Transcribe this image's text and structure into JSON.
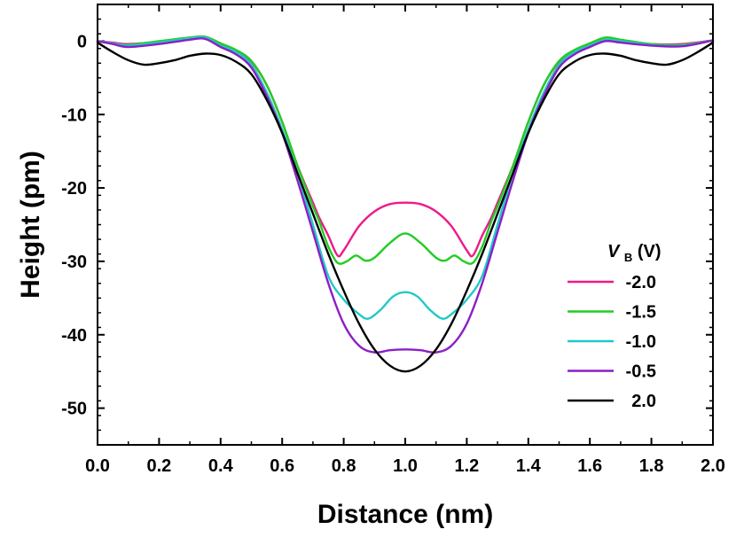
{
  "chart_data": {
    "type": "line",
    "title": "",
    "xlabel": "Distance (nm)",
    "ylabel": "Height (pm)",
    "xlim": [
      0.0,
      2.0
    ],
    "ylim": [
      -55,
      5
    ],
    "xticks": [
      0.0,
      0.2,
      0.4,
      0.6,
      0.8,
      1.0,
      1.2,
      1.4,
      1.6,
      1.8,
      2.0
    ],
    "xtick_labels": [
      "0.0",
      "0.2",
      "0.4",
      "0.6",
      "0.8",
      "1.0",
      "1.2",
      "1.4",
      "1.6",
      "1.8",
      "2.0"
    ],
    "yticks": [
      0,
      -10,
      -20,
      -30,
      -40,
      -50
    ],
    "ytick_labels": [
      "0",
      "-10",
      "-20",
      "-30",
      "-40",
      "-50"
    ],
    "grid": false,
    "legend": {
      "title_main": "V",
      "title_sub": "B",
      "title_unit": " (V)",
      "placement": "right"
    },
    "series": [
      {
        "name": "-2.0",
        "color": "#ee1a8a",
        "points": [
          [
            0.0,
            0.0
          ],
          [
            0.05,
            -0.2
          ],
          [
            0.1,
            -0.4
          ],
          [
            0.2,
            -0.1
          ],
          [
            0.3,
            0.4
          ],
          [
            0.35,
            0.5
          ],
          [
            0.4,
            -0.4
          ],
          [
            0.45,
            -1.3
          ],
          [
            0.5,
            -2.8
          ],
          [
            0.55,
            -6
          ],
          [
            0.6,
            -11
          ],
          [
            0.65,
            -17
          ],
          [
            0.7,
            -22
          ],
          [
            0.72,
            -24
          ],
          [
            0.75,
            -26.5
          ],
          [
            0.78,
            -29.2
          ],
          [
            0.8,
            -28.5
          ],
          [
            0.85,
            -25.2
          ],
          [
            0.9,
            -23.2
          ],
          [
            0.95,
            -22.2
          ],
          [
            1.0,
            -22.0
          ],
          [
            1.05,
            -22.2
          ],
          [
            1.1,
            -23.2
          ],
          [
            1.15,
            -25.2
          ],
          [
            1.2,
            -28.5
          ],
          [
            1.22,
            -29.2
          ],
          [
            1.25,
            -26.5
          ],
          [
            1.28,
            -24
          ],
          [
            1.3,
            -22
          ],
          [
            1.35,
            -17
          ],
          [
            1.4,
            -11
          ],
          [
            1.45,
            -6
          ],
          [
            1.5,
            -2.8
          ],
          [
            1.55,
            -1.3
          ],
          [
            1.6,
            -0.4
          ],
          [
            1.65,
            0.2
          ],
          [
            1.7,
            0.0
          ],
          [
            1.8,
            -0.4
          ],
          [
            1.9,
            -0.4
          ],
          [
            2.0,
            0.1
          ]
        ]
      },
      {
        "name": "-1.5",
        "color": "#22cc22",
        "points": [
          [
            0.0,
            0.0
          ],
          [
            0.05,
            -0.3
          ],
          [
            0.1,
            -0.5
          ],
          [
            0.2,
            0.0
          ],
          [
            0.3,
            0.5
          ],
          [
            0.35,
            0.6
          ],
          [
            0.4,
            -0.3
          ],
          [
            0.45,
            -1.2
          ],
          [
            0.5,
            -2.7
          ],
          [
            0.55,
            -6
          ],
          [
            0.6,
            -11
          ],
          [
            0.65,
            -17
          ],
          [
            0.7,
            -22.5
          ],
          [
            0.72,
            -24.5
          ],
          [
            0.75,
            -28
          ],
          [
            0.78,
            -30.2
          ],
          [
            0.81,
            -30.0
          ],
          [
            0.84,
            -29.2
          ],
          [
            0.87,
            -29.9
          ],
          [
            0.9,
            -29.5
          ],
          [
            0.95,
            -27.5
          ],
          [
            1.0,
            -26.2
          ],
          [
            1.05,
            -27.5
          ],
          [
            1.1,
            -29.5
          ],
          [
            1.13,
            -29.9
          ],
          [
            1.16,
            -29.2
          ],
          [
            1.19,
            -30.0
          ],
          [
            1.22,
            -30.2
          ],
          [
            1.25,
            -28
          ],
          [
            1.28,
            -24.5
          ],
          [
            1.3,
            -22.5
          ],
          [
            1.35,
            -17
          ],
          [
            1.4,
            -11
          ],
          [
            1.45,
            -6
          ],
          [
            1.5,
            -2.7
          ],
          [
            1.55,
            -1.2
          ],
          [
            1.6,
            -0.3
          ],
          [
            1.65,
            0.5
          ],
          [
            1.7,
            0.2
          ],
          [
            1.8,
            -0.4
          ],
          [
            1.9,
            -0.5
          ],
          [
            2.0,
            0.1
          ]
        ]
      },
      {
        "name": "-1.0",
        "color": "#22c8c8",
        "points": [
          [
            0.0,
            0.0
          ],
          [
            0.05,
            -0.3
          ],
          [
            0.1,
            -0.6
          ],
          [
            0.2,
            -0.2
          ],
          [
            0.3,
            0.4
          ],
          [
            0.35,
            0.5
          ],
          [
            0.4,
            -0.6
          ],
          [
            0.45,
            -1.5
          ],
          [
            0.5,
            -3.2
          ],
          [
            0.55,
            -7
          ],
          [
            0.6,
            -12
          ],
          [
            0.65,
            -18
          ],
          [
            0.7,
            -25
          ],
          [
            0.75,
            -32
          ],
          [
            0.8,
            -35.2
          ],
          [
            0.85,
            -37.2
          ],
          [
            0.88,
            -37.8
          ],
          [
            0.92,
            -36.6
          ],
          [
            0.96,
            -34.8
          ],
          [
            1.0,
            -34.2
          ],
          [
            1.04,
            -34.8
          ],
          [
            1.08,
            -36.6
          ],
          [
            1.12,
            -37.8
          ],
          [
            1.15,
            -37.2
          ],
          [
            1.2,
            -35.2
          ],
          [
            1.25,
            -32
          ],
          [
            1.3,
            -25
          ],
          [
            1.35,
            -18
          ],
          [
            1.4,
            -12
          ],
          [
            1.45,
            -7
          ],
          [
            1.5,
            -3.2
          ],
          [
            1.55,
            -1.5
          ],
          [
            1.6,
            -0.6
          ],
          [
            1.65,
            0.2
          ],
          [
            1.7,
            0.0
          ],
          [
            1.8,
            -0.5
          ],
          [
            1.9,
            -0.6
          ],
          [
            2.0,
            0.1
          ]
        ]
      },
      {
        "name": "-0.5",
        "color": "#8b1fc4",
        "points": [
          [
            0.0,
            0.0
          ],
          [
            0.05,
            -0.4
          ],
          [
            0.1,
            -0.8
          ],
          [
            0.2,
            -0.4
          ],
          [
            0.3,
            0.2
          ],
          [
            0.35,
            0.3
          ],
          [
            0.4,
            -0.8
          ],
          [
            0.45,
            -1.8
          ],
          [
            0.5,
            -3.6
          ],
          [
            0.55,
            -7.5
          ],
          [
            0.6,
            -12.5
          ],
          [
            0.65,
            -19
          ],
          [
            0.7,
            -26
          ],
          [
            0.75,
            -33
          ],
          [
            0.8,
            -38.5
          ],
          [
            0.85,
            -41.5
          ],
          [
            0.9,
            -42.4
          ],
          [
            0.95,
            -42.1
          ],
          [
            1.0,
            -42.0
          ],
          [
            1.05,
            -42.1
          ],
          [
            1.1,
            -42.4
          ],
          [
            1.15,
            -41.5
          ],
          [
            1.2,
            -38.5
          ],
          [
            1.25,
            -33
          ],
          [
            1.3,
            -26
          ],
          [
            1.35,
            -19
          ],
          [
            1.4,
            -12.5
          ],
          [
            1.45,
            -7.5
          ],
          [
            1.5,
            -3.6
          ],
          [
            1.55,
            -1.8
          ],
          [
            1.6,
            -0.8
          ],
          [
            1.65,
            0.0
          ],
          [
            1.7,
            -0.2
          ],
          [
            1.8,
            -0.6
          ],
          [
            1.9,
            -0.7
          ],
          [
            2.0,
            0.1
          ]
        ]
      },
      {
        "name": "2.0",
        "color": "#000000",
        "points": [
          [
            0.0,
            -0.2
          ],
          [
            0.05,
            -1.5
          ],
          [
            0.1,
            -2.6
          ],
          [
            0.15,
            -3.2
          ],
          [
            0.2,
            -3.0
          ],
          [
            0.25,
            -2.6
          ],
          [
            0.3,
            -2.0
          ],
          [
            0.35,
            -1.7
          ],
          [
            0.4,
            -1.9
          ],
          [
            0.45,
            -2.8
          ],
          [
            0.5,
            -4.5
          ],
          [
            0.55,
            -8
          ],
          [
            0.6,
            -12.5
          ],
          [
            0.65,
            -18
          ],
          [
            0.7,
            -23.5
          ],
          [
            0.75,
            -29
          ],
          [
            0.8,
            -34
          ],
          [
            0.85,
            -38.5
          ],
          [
            0.9,
            -42
          ],
          [
            0.95,
            -44.2
          ],
          [
            1.0,
            -45.0
          ],
          [
            1.05,
            -44.2
          ],
          [
            1.1,
            -42
          ],
          [
            1.15,
            -38.5
          ],
          [
            1.2,
            -34
          ],
          [
            1.25,
            -29
          ],
          [
            1.3,
            -23.5
          ],
          [
            1.35,
            -18
          ],
          [
            1.4,
            -12.5
          ],
          [
            1.45,
            -8
          ],
          [
            1.5,
            -4.5
          ],
          [
            1.55,
            -2.8
          ],
          [
            1.6,
            -1.9
          ],
          [
            1.65,
            -1.7
          ],
          [
            1.7,
            -2.0
          ],
          [
            1.75,
            -2.6
          ],
          [
            1.8,
            -3.0
          ],
          [
            1.85,
            -3.2
          ],
          [
            1.9,
            -2.6
          ],
          [
            1.95,
            -1.5
          ],
          [
            2.0,
            -0.2
          ]
        ]
      }
    ]
  }
}
